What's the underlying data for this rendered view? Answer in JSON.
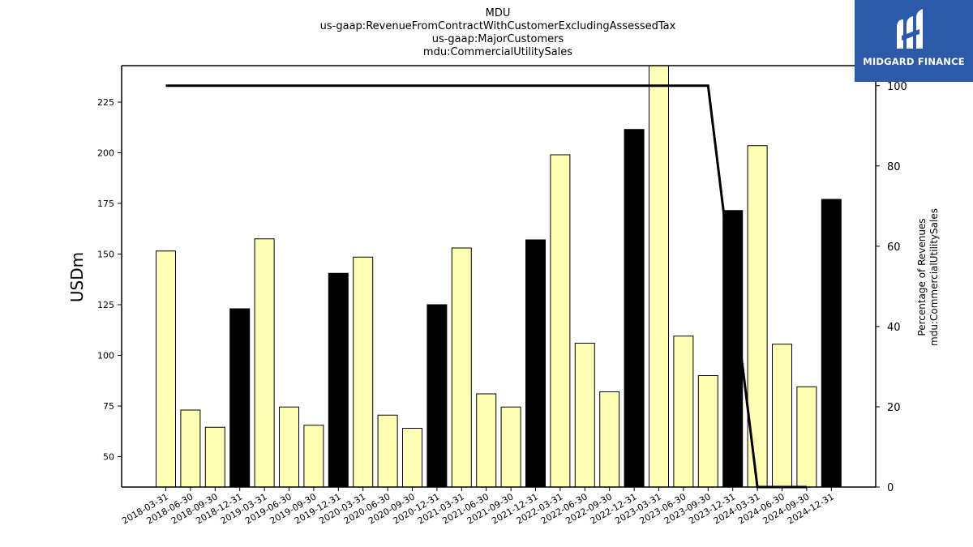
{
  "chart_data": {
    "type": "bar",
    "title_lines": [
      "MDU",
      "us-gaap:RevenueFromContractWithCustomerExcludingAssessedTax",
      "us-gaap:MajorCustomers",
      "mdu:CommercialUtilitySales"
    ],
    "ylabel": "USDm",
    "ylabel_right_lines": [
      "Percentage of Revenues",
      "mdu:CommercialUtilitySales"
    ],
    "ylim": [
      35,
      243
    ],
    "ylim_right": [
      0,
      105
    ],
    "yticks": [
      50,
      75,
      100,
      125,
      150,
      175,
      200,
      225
    ],
    "yticks_right": [
      0,
      20,
      40,
      60,
      80,
      100
    ],
    "categories": [
      "2018-03-31",
      "2018-06-30",
      "2018-09-30",
      "2018-12-31",
      "2019-03-31",
      "2019-06-30",
      "2019-09-30",
      "2019-12-31",
      "2020-03-31",
      "2020-06-30",
      "2020-09-30",
      "2020-12-31",
      "2021-03-31",
      "2021-06-30",
      "2021-09-30",
      "2021-12-31",
      "2022-03-31",
      "2022-06-30",
      "2022-09-30",
      "2022-12-31",
      "2023-03-31",
      "2023-06-30",
      "2023-09-30",
      "2023-12-31",
      "2024-03-31",
      "2024-06-30",
      "2024-09-30",
      "2024-12-31"
    ],
    "values": [
      151.5,
      73,
      64.5,
      123,
      157.5,
      74.5,
      65.5,
      140.5,
      148.5,
      70.5,
      64,
      125,
      153,
      81,
      74.5,
      157,
      199,
      106,
      82,
      211.5,
      243,
      109.5,
      90,
      171.5,
      203.5,
      105.5,
      84.5,
      177
    ],
    "bar_styles": [
      "quarter",
      "quarter",
      "quarter",
      "annual",
      "quarter",
      "quarter",
      "quarter",
      "annual",
      "quarter",
      "quarter",
      "quarter",
      "annual",
      "quarter",
      "quarter",
      "quarter",
      "annual",
      "quarter",
      "quarter",
      "quarter",
      "annual",
      "quarter",
      "quarter",
      "quarter",
      "annual",
      "quarter",
      "quarter",
      "quarter",
      "annual"
    ],
    "line_series": {
      "axis": "right",
      "values": [
        100,
        100,
        100,
        null,
        100,
        100,
        100,
        null,
        100,
        100,
        100,
        null,
        100,
        100,
        100,
        null,
        100,
        100,
        100,
        null,
        100,
        100,
        100,
        null,
        0,
        0,
        0,
        null
      ]
    },
    "colors": {
      "quarter_bar": "#ffffb3",
      "annual_bar": "#000000",
      "line": "#000000"
    }
  },
  "logo": {
    "text": "MIDGARD FINANCE"
  }
}
